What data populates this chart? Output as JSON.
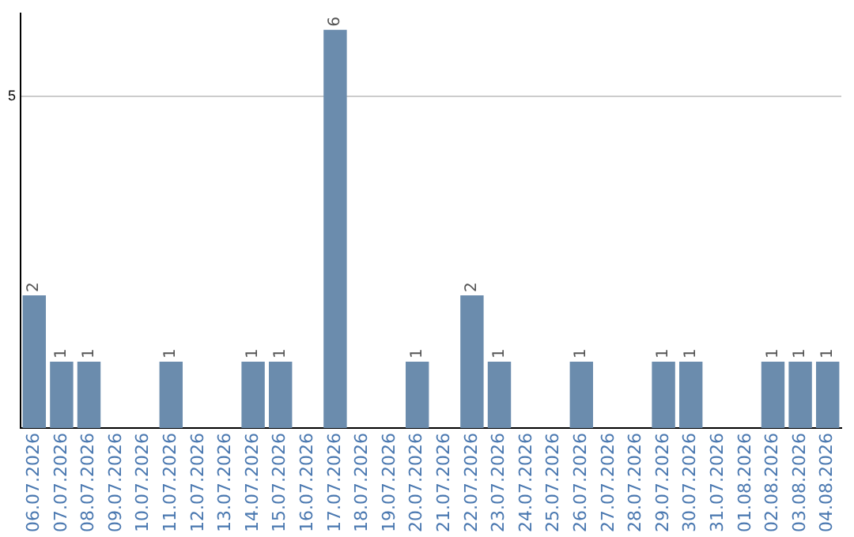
{
  "chart_data": {
    "type": "bar",
    "categories": [
      "06.07.2026",
      "07.07.2026",
      "08.07.2026",
      "09.07.2026",
      "10.07.2026",
      "11.07.2026",
      "12.07.2026",
      "13.07.2026",
      "14.07.2026",
      "15.07.2026",
      "16.07.2026",
      "17.07.2026",
      "18.07.2026",
      "19.07.2026",
      "20.07.2026",
      "21.07.2026",
      "22.07.2026",
      "23.07.2026",
      "24.07.2026",
      "25.07.2026",
      "26.07.2026",
      "27.07.2026",
      "28.07.2026",
      "29.07.2026",
      "30.07.2026",
      "31.07.2026",
      "01.08.2026",
      "02.08.2026",
      "03.08.2026",
      "04.08.2026"
    ],
    "values": [
      2,
      1,
      1,
      0,
      0,
      1,
      0,
      0,
      1,
      1,
      0,
      6,
      0,
      0,
      1,
      0,
      2,
      1,
      0,
      0,
      1,
      0,
      0,
      1,
      1,
      0,
      0,
      1,
      1,
      1
    ],
    "value_labels": [
      "2",
      "1",
      "1",
      null,
      null,
      "1",
      null,
      null,
      "1",
      "1",
      null,
      "6",
      null,
      null,
      "1",
      null,
      "2",
      "1",
      null,
      null,
      "1",
      null,
      null,
      "1",
      "1",
      null,
      null,
      "1",
      "1",
      "1"
    ],
    "color": "#6b8cad",
    "ylim": [
      0,
      6.25
    ],
    "yticks": [
      5
    ],
    "grid": "y"
  }
}
